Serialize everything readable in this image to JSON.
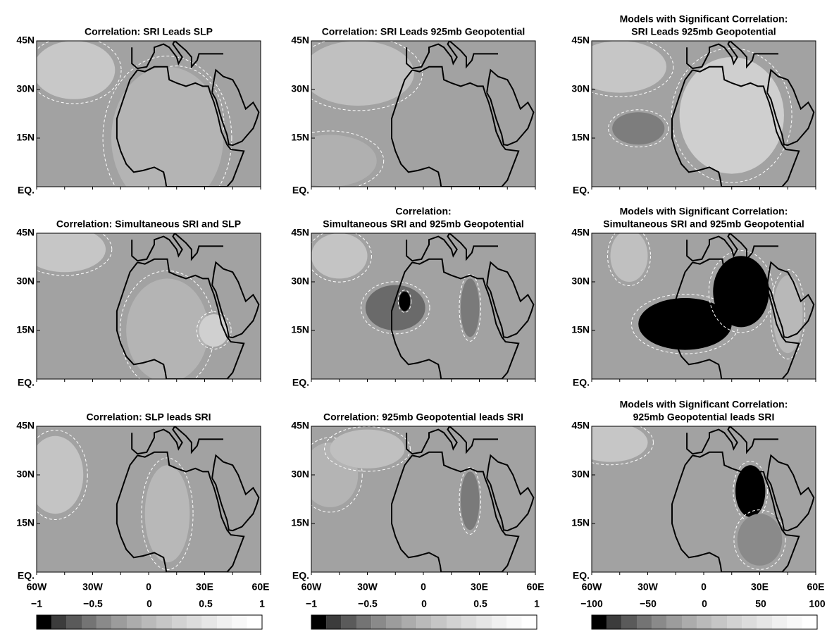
{
  "panels": [
    {
      "title": [
        "Correlation: SRI Leads SLP"
      ]
    },
    {
      "title": [
        "Correlation: SRI Leads 925mb Geopotential"
      ]
    },
    {
      "title": [
        "Models with Significant Correlation:",
        "SRI Leads 925mb Geopotential"
      ]
    },
    {
      "title": [
        "Correlation: Simultaneous SRI and SLP"
      ]
    },
    {
      "title": [
        "Correlation:",
        "Simultaneous SRI and 925mb Geopotential"
      ]
    },
    {
      "title": [
        "Models with Significant Correlation:",
        "Simultaneous SRI and 925mb Geopotential"
      ]
    },
    {
      "title": [
        "Correlation: SLP leads SRI"
      ]
    },
    {
      "title": [
        "Correlation: 925mb Geopotential leads SRI"
      ]
    },
    {
      "title": [
        "Models with Significant Correlation:",
        "925mb Geopotential leads SRI"
      ]
    }
  ],
  "lat_labels": [
    "45N",
    "30N",
    "15N",
    "EQ."
  ],
  "lon_labels": [
    "60W",
    "30W",
    "0",
    "30E",
    "60E"
  ],
  "colorbars": [
    {
      "ticks": [
        "−1",
        "−0.5",
        "0",
        "0.5",
        "1"
      ]
    },
    {
      "ticks": [
        "−1",
        "−0.5",
        "0",
        "0.5",
        "1"
      ]
    },
    {
      "ticks": [
        "−100",
        "−50",
        "0",
        "50",
        "100"
      ]
    }
  ]
}
